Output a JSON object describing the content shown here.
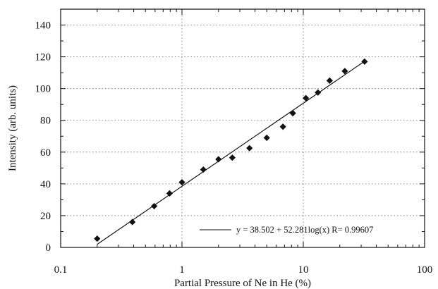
{
  "chart_data": {
    "type": "scatter",
    "x_scale": "log",
    "xlabel": "Partial Pressure of Ne in He (%)",
    "ylabel": "Intensity (arb. units)",
    "xlim": [
      0.1,
      100
    ],
    "ylim": [
      0,
      150
    ],
    "x_ticks": [
      0.1,
      1,
      10,
      100
    ],
    "x_tick_labels": [
      "0.1",
      "1",
      "10",
      "100"
    ],
    "y_ticks": [
      0,
      20,
      40,
      60,
      80,
      100,
      120,
      140
    ],
    "y_tick_labels": [
      "0",
      "20",
      "40",
      "60",
      "80",
      "100",
      "120",
      "140"
    ],
    "grid": "dotted",
    "legend_position": "bottom-right",
    "fit": {
      "intercept": 38.502,
      "slope": 52.281,
      "x_range": [
        0.2,
        32
      ],
      "label": "y = 38.502 + 52.281log(x) R= 0.99607"
    },
    "points": [
      {
        "x": 0.2,
        "y": 5.5
      },
      {
        "x": 0.39,
        "y": 16
      },
      {
        "x": 0.59,
        "y": 26
      },
      {
        "x": 0.79,
        "y": 34
      },
      {
        "x": 1.0,
        "y": 41
      },
      {
        "x": 1.5,
        "y": 49
      },
      {
        "x": 2.0,
        "y": 55.5
      },
      {
        "x": 2.6,
        "y": 56.5
      },
      {
        "x": 3.6,
        "y": 62.5
      },
      {
        "x": 5.0,
        "y": 69
      },
      {
        "x": 6.8,
        "y": 76
      },
      {
        "x": 8.2,
        "y": 84.5
      },
      {
        "x": 10.5,
        "y": 94
      },
      {
        "x": 13.2,
        "y": 97.5
      },
      {
        "x": 16.5,
        "y": 105
      },
      {
        "x": 22,
        "y": 111
      },
      {
        "x": 32,
        "y": 117
      }
    ]
  }
}
